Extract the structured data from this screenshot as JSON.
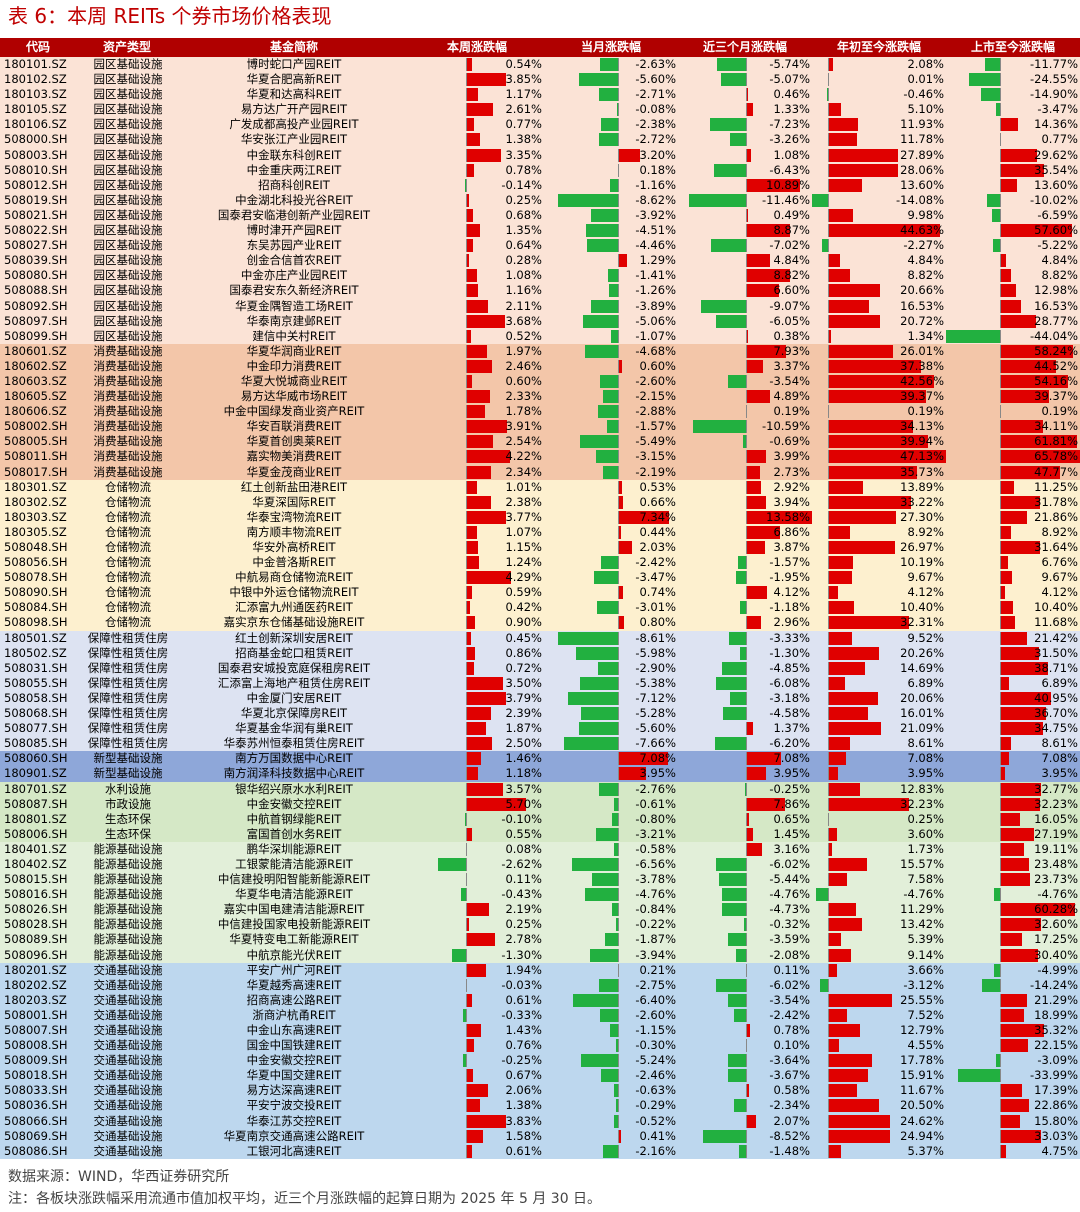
{
  "title": "表 6：本周 REITs 个券市场价格表现",
  "headers": [
    "代码",
    "资产类型",
    "基金简称",
    "本周涨跌幅",
    "当月涨跌幅",
    "近三个月涨跌幅",
    "年初至今涨跌幅",
    "上市至今涨跌幅"
  ],
  "colors": {
    "header_bg": "#b00000",
    "up": "#e00000",
    "down": "#22b040"
  },
  "sector_colors": {
    "园区基础设施": "#fbe3d6",
    "消费基础设施": "#f3c6a9",
    "仓储物流": "#fdf0cf",
    "保障性租赁住房": "#dde3f2",
    "新型基础设施": "#8ea7d9",
    "水利设施": "#d5e8c6",
    "市政设施": "#d5e8c6",
    "生态环保": "#d5e8c6",
    "能源基础设施": "#e2efd9",
    "交通基础设施": "#bdd7ee"
  },
  "rows": [
    {
      "code": "180101.SZ",
      "type": "园区基础设施",
      "name": "博时蛇口产园REIT",
      "week": "0.54%",
      "month": "-2.63%",
      "m3": "-5.74%",
      "ytd": "2.08%",
      "inc": "-11.77%"
    },
    {
      "code": "180102.SZ",
      "type": "园区基础设施",
      "name": "华夏合肥高新REIT",
      "week": "3.85%",
      "month": "-5.60%",
      "m3": "-5.07%",
      "ytd": "0.01%",
      "inc": "-24.55%"
    },
    {
      "code": "180103.SZ",
      "type": "园区基础设施",
      "name": "华夏和达高科REIT",
      "week": "1.17%",
      "month": "-2.71%",
      "m3": "0.46%",
      "ytd": "-0.46%",
      "inc": "-14.90%"
    },
    {
      "code": "180105.SZ",
      "type": "园区基础设施",
      "name": "易方达广开产园REIT",
      "week": "2.61%",
      "month": "-0.08%",
      "m3": "1.33%",
      "ytd": "5.10%",
      "inc": "-3.47%"
    },
    {
      "code": "180106.SZ",
      "type": "园区基础设施",
      "name": "广发成都高投产业园REIT",
      "week": "0.77%",
      "month": "-2.38%",
      "m3": "-7.23%",
      "ytd": "11.93%",
      "inc": "14.36%"
    },
    {
      "code": "508000.SH",
      "type": "园区基础设施",
      "name": "华安张江产业园REIT",
      "week": "1.38%",
      "month": "-2.72%",
      "m3": "-3.26%",
      "ytd": "11.78%",
      "inc": "0.77%"
    },
    {
      "code": "508003.SH",
      "type": "园区基础设施",
      "name": "中金联东科创REIT",
      "week": "3.35%",
      "month": "3.20%",
      "m3": "1.08%",
      "ytd": "27.89%",
      "inc": "29.62%"
    },
    {
      "code": "508010.SH",
      "type": "园区基础设施",
      "name": "中金重庆两江REIT",
      "week": "0.78%",
      "month": "0.18%",
      "m3": "-6.43%",
      "ytd": "28.06%",
      "inc": "35.54%"
    },
    {
      "code": "508012.SH",
      "type": "园区基础设施",
      "name": "招商科创REIT",
      "week": "-0.14%",
      "month": "-1.16%",
      "m3": "10.89%",
      "ytd": "13.60%",
      "inc": "13.60%"
    },
    {
      "code": "508019.SH",
      "type": "园区基础设施",
      "name": "中金湖北科投光谷REIT",
      "week": "0.25%",
      "month": "-8.62%",
      "m3": "-11.46%",
      "ytd": "-14.08%",
      "inc": "-10.02%"
    },
    {
      "code": "508021.SH",
      "type": "园区基础设施",
      "name": "国泰君安临港创新产业园REIT",
      "week": "0.68%",
      "month": "-3.92%",
      "m3": "0.49%",
      "ytd": "9.98%",
      "inc": "-6.59%"
    },
    {
      "code": "508022.SH",
      "type": "园区基础设施",
      "name": "博时津开产园REIT",
      "week": "1.35%",
      "month": "-4.51%",
      "m3": "8.87%",
      "ytd": "44.63%",
      "inc": "57.60%"
    },
    {
      "code": "508027.SH",
      "type": "园区基础设施",
      "name": "东吴苏园产业REIT",
      "week": "0.64%",
      "month": "-4.46%",
      "m3": "-7.02%",
      "ytd": "-2.27%",
      "inc": "-5.22%"
    },
    {
      "code": "508039.SH",
      "type": "园区基础设施",
      "name": "创金合信首农REIT",
      "week": "0.28%",
      "month": "1.29%",
      "m3": "4.84%",
      "ytd": "4.84%",
      "inc": "4.84%"
    },
    {
      "code": "508080.SH",
      "type": "园区基础设施",
      "name": "中金亦庄产业园REIT",
      "week": "1.08%",
      "month": "-1.41%",
      "m3": "8.82%",
      "ytd": "8.82%",
      "inc": "8.82%"
    },
    {
      "code": "508088.SH",
      "type": "园区基础设施",
      "name": "国泰君安东久新经济REIT",
      "week": "1.16%",
      "month": "-1.26%",
      "m3": "6.60%",
      "ytd": "20.66%",
      "inc": "12.98%"
    },
    {
      "code": "508092.SH",
      "type": "园区基础设施",
      "name": "华夏金隅智造工场REIT",
      "week": "2.11%",
      "month": "-3.89%",
      "m3": "-9.07%",
      "ytd": "16.53%",
      "inc": "16.53%"
    },
    {
      "code": "508097.SH",
      "type": "园区基础设施",
      "name": "华泰南京建邺REIT",
      "week": "3.68%",
      "month": "-5.06%",
      "m3": "-6.05%",
      "ytd": "20.72%",
      "inc": "28.77%"
    },
    {
      "code": "508099.SH",
      "type": "园区基础设施",
      "name": "建信中关村REIT",
      "week": "0.52%",
      "month": "-1.07%",
      "m3": "0.38%",
      "ytd": "1.34%",
      "inc": "-44.04%"
    },
    {
      "code": "180601.SZ",
      "type": "消费基础设施",
      "name": "华夏华润商业REIT",
      "week": "1.97%",
      "month": "-4.68%",
      "m3": "7.93%",
      "ytd": "26.01%",
      "inc": "58.24%"
    },
    {
      "code": "180602.SZ",
      "type": "消费基础设施",
      "name": "中金印力消费REIT",
      "week": "2.46%",
      "month": "0.60%",
      "m3": "3.37%",
      "ytd": "37.38%",
      "inc": "44.52%"
    },
    {
      "code": "180603.SZ",
      "type": "消费基础设施",
      "name": "华夏大悦城商业REIT",
      "week": "0.60%",
      "month": "-2.60%",
      "m3": "-3.54%",
      "ytd": "42.56%",
      "inc": "54.16%"
    },
    {
      "code": "180605.SZ",
      "type": "消费基础设施",
      "name": "易方达华威市场REIT",
      "week": "2.33%",
      "month": "-2.15%",
      "m3": "4.89%",
      "ytd": "39.37%",
      "inc": "39.37%"
    },
    {
      "code": "180606.SZ",
      "type": "消费基础设施",
      "name": "中金中国绿发商业资产REIT",
      "week": "1.78%",
      "month": "-2.88%",
      "m3": "0.19%",
      "ytd": "0.19%",
      "inc": "0.19%"
    },
    {
      "code": "508002.SH",
      "type": "消费基础设施",
      "name": "华安百联消费REIT",
      "week": "3.91%",
      "month": "-1.57%",
      "m3": "-10.59%",
      "ytd": "34.13%",
      "inc": "34.11%"
    },
    {
      "code": "508005.SH",
      "type": "消费基础设施",
      "name": "华夏首创奥莱REIT",
      "week": "2.54%",
      "month": "-5.49%",
      "m3": "-0.69%",
      "ytd": "39.94%",
      "inc": "61.81%"
    },
    {
      "code": "508011.SH",
      "type": "消费基础设施",
      "name": "嘉实物美消费REIT",
      "week": "4.22%",
      "month": "-3.15%",
      "m3": "3.99%",
      "ytd": "47.13%",
      "inc": "65.78%"
    },
    {
      "code": "508017.SH",
      "type": "消费基础设施",
      "name": "华夏金茂商业REIT",
      "week": "2.34%",
      "month": "-2.19%",
      "m3": "2.73%",
      "ytd": "35.73%",
      "inc": "47.77%"
    },
    {
      "code": "180301.SZ",
      "type": "仓储物流",
      "name": "红土创新盐田港REIT",
      "week": "1.01%",
      "month": "0.53%",
      "m3": "2.92%",
      "ytd": "13.89%",
      "inc": "11.25%"
    },
    {
      "code": "180302.SZ",
      "type": "仓储物流",
      "name": "华夏深国际REIT",
      "week": "2.38%",
      "month": "0.66%",
      "m3": "3.94%",
      "ytd": "33.22%",
      "inc": "31.78%"
    },
    {
      "code": "180303.SZ",
      "type": "仓储物流",
      "name": "华泰宝湾物流REIT",
      "week": "3.77%",
      "month": "7.34%",
      "m3": "13.58%",
      "ytd": "27.30%",
      "inc": "21.86%"
    },
    {
      "code": "180305.SZ",
      "type": "仓储物流",
      "name": "南方顺丰物流REIT",
      "week": "1.07%",
      "month": "0.44%",
      "m3": "6.86%",
      "ytd": "8.92%",
      "inc": "8.92%"
    },
    {
      "code": "508048.SH",
      "type": "仓储物流",
      "name": "华安外高桥REIT",
      "week": "1.15%",
      "month": "2.03%",
      "m3": "3.87%",
      "ytd": "26.97%",
      "inc": "31.64%"
    },
    {
      "code": "508056.SH",
      "type": "仓储物流",
      "name": "中金普洛斯REIT",
      "week": "1.24%",
      "month": "-2.42%",
      "m3": "-1.57%",
      "ytd": "10.19%",
      "inc": "6.76%"
    },
    {
      "code": "508078.SH",
      "type": "仓储物流",
      "name": "中航易商仓储物流REIT",
      "week": "4.29%",
      "month": "-3.47%",
      "m3": "-1.95%",
      "ytd": "9.67%",
      "inc": "9.67%"
    },
    {
      "code": "508090.SH",
      "type": "仓储物流",
      "name": "中银中外运仓储物流REIT",
      "week": "0.59%",
      "month": "0.74%",
      "m3": "4.12%",
      "ytd": "4.12%",
      "inc": "4.12%"
    },
    {
      "code": "508084.SH",
      "type": "仓储物流",
      "name": "汇添富九州通医药REIT",
      "week": "0.42%",
      "month": "-3.01%",
      "m3": "-1.18%",
      "ytd": "10.40%",
      "inc": "10.40%"
    },
    {
      "code": "508098.SH",
      "type": "仓储物流",
      "name": "嘉实京东仓储基础设施REIT",
      "week": "0.90%",
      "month": "0.80%",
      "m3": "2.96%",
      "ytd": "32.31%",
      "inc": "11.68%"
    },
    {
      "code": "180501.SZ",
      "type": "保障性租赁住房",
      "name": "红土创新深圳安居REIT",
      "week": "0.45%",
      "month": "-8.61%",
      "m3": "-3.33%",
      "ytd": "9.52%",
      "inc": "21.42%"
    },
    {
      "code": "180502.SZ",
      "type": "保障性租赁住房",
      "name": "招商基金蛇口租赁REIT",
      "week": "0.86%",
      "month": "-5.98%",
      "m3": "-1.30%",
      "ytd": "20.26%",
      "inc": "31.50%"
    },
    {
      "code": "508031.SH",
      "type": "保障性租赁住房",
      "name": "国泰君安城投宽庭保租房REIT",
      "week": "0.72%",
      "month": "-2.90%",
      "m3": "-4.85%",
      "ytd": "14.69%",
      "inc": "38.71%"
    },
    {
      "code": "508055.SH",
      "type": "保障性租赁住房",
      "name": "汇添富上海地产租赁住房REIT",
      "week": "3.50%",
      "month": "-5.38%",
      "m3": "-6.08%",
      "ytd": "6.89%",
      "inc": "6.89%"
    },
    {
      "code": "508058.SH",
      "type": "保障性租赁住房",
      "name": "中金厦门安居REIT",
      "week": "3.79%",
      "month": "-7.12%",
      "m3": "-3.18%",
      "ytd": "20.06%",
      "inc": "40.95%"
    },
    {
      "code": "508068.SH",
      "type": "保障性租赁住房",
      "name": "华夏北京保障房REIT",
      "week": "2.39%",
      "month": "-5.28%",
      "m3": "-4.58%",
      "ytd": "16.01%",
      "inc": "36.70%"
    },
    {
      "code": "508077.SH",
      "type": "保障性租赁住房",
      "name": "华夏基金华润有巢REIT",
      "week": "1.87%",
      "month": "-5.60%",
      "m3": "1.37%",
      "ytd": "21.09%",
      "inc": "34.75%"
    },
    {
      "code": "508085.SH",
      "type": "保障性租赁住房",
      "name": "华泰苏州恒泰租赁住房REIT",
      "week": "2.50%",
      "month": "-7.66%",
      "m3": "-6.20%",
      "ytd": "8.61%",
      "inc": "8.61%"
    },
    {
      "code": "508060.SH",
      "type": "新型基础设施",
      "name": "南方万国数据中心REIT",
      "week": "1.46%",
      "month": "7.08%",
      "m3": "7.08%",
      "ytd": "7.08%",
      "inc": "7.08%"
    },
    {
      "code": "180901.SZ",
      "type": "新型基础设施",
      "name": "南方润泽科技数据中心REIT",
      "week": "1.18%",
      "month": "3.95%",
      "m3": "3.95%",
      "ytd": "3.95%",
      "inc": "3.95%"
    },
    {
      "code": "180701.SZ",
      "type": "水利设施",
      "name": "银华绍兴原水水利REIT",
      "week": "3.57%",
      "month": "-2.76%",
      "m3": "-0.25%",
      "ytd": "12.83%",
      "inc": "32.77%"
    },
    {
      "code": "508087.SH",
      "type": "市政设施",
      "name": "中金安徽交控REIT",
      "week": "5.70%",
      "month": "-0.61%",
      "m3": "7.86%",
      "ytd": "32.23%",
      "inc": "32.23%"
    },
    {
      "code": "180801.SZ",
      "type": "生态环保",
      "name": "中航首钢绿能REIT",
      "week": "-0.10%",
      "month": "-0.80%",
      "m3": "0.65%",
      "ytd": "0.25%",
      "inc": "16.05%"
    },
    {
      "code": "508006.SH",
      "type": "生态环保",
      "name": "富国首创水务REIT",
      "week": "0.55%",
      "month": "-3.21%",
      "m3": "1.45%",
      "ytd": "3.60%",
      "inc": "27.19%"
    },
    {
      "code": "180401.SZ",
      "type": "能源基础设施",
      "name": "鹏华深圳能源REIT",
      "week": "0.08%",
      "month": "-0.58%",
      "m3": "3.16%",
      "ytd": "1.73%",
      "inc": "19.11%"
    },
    {
      "code": "180402.SZ",
      "type": "能源基础设施",
      "name": "工银蒙能清洁能源REIT",
      "week": "-2.62%",
      "month": "-6.56%",
      "m3": "-6.02%",
      "ytd": "15.57%",
      "inc": "23.48%"
    },
    {
      "code": "508015.SH",
      "type": "能源基础设施",
      "name": "中信建投明阳智能新能源REIT",
      "week": "0.11%",
      "month": "-3.78%",
      "m3": "-5.44%",
      "ytd": "7.58%",
      "inc": "23.73%"
    },
    {
      "code": "508016.SH",
      "type": "能源基础设施",
      "name": "华夏华电清洁能源REIT",
      "week": "-0.43%",
      "month": "-4.76%",
      "m3": "-4.76%",
      "ytd": "-4.76%",
      "inc": "-4.76%"
    },
    {
      "code": "508026.SH",
      "type": "能源基础设施",
      "name": "嘉实中国电建清洁能源REIT",
      "week": "2.19%",
      "month": "-0.84%",
      "m3": "-4.73%",
      "ytd": "11.29%",
      "inc": "60.28%"
    },
    {
      "code": "508028.SH",
      "type": "能源基础设施",
      "name": "中信建投国家电投新能源REIT",
      "week": "0.25%",
      "month": "-0.22%",
      "m3": "-0.32%",
      "ytd": "13.42%",
      "inc": "32.60%"
    },
    {
      "code": "508089.SH",
      "type": "能源基础设施",
      "name": "华夏特变电工新能源REIT",
      "week": "2.78%",
      "month": "-1.87%",
      "m3": "-3.59%",
      "ytd": "5.39%",
      "inc": "17.25%"
    },
    {
      "code": "508096.SH",
      "type": "能源基础设施",
      "name": "中航京能光伏REIT",
      "week": "-1.30%",
      "month": "-3.94%",
      "m3": "-2.08%",
      "ytd": "9.14%",
      "inc": "30.40%"
    },
    {
      "code": "180201.SZ",
      "type": "交通基础设施",
      "name": "平安广州广河REIT",
      "week": "1.94%",
      "month": "0.21%",
      "m3": "0.11%",
      "ytd": "3.66%",
      "inc": "-4.99%"
    },
    {
      "code": "180202.SZ",
      "type": "交通基础设施",
      "name": "华夏越秀高速REIT",
      "week": "-0.03%",
      "month": "-2.75%",
      "m3": "-6.02%",
      "ytd": "-3.12%",
      "inc": "-14.24%"
    },
    {
      "code": "180203.SZ",
      "type": "交通基础设施",
      "name": "招商高速公路REIT",
      "week": "0.61%",
      "month": "-6.40%",
      "m3": "-3.54%",
      "ytd": "25.55%",
      "inc": "21.29%"
    },
    {
      "code": "508001.SH",
      "type": "交通基础设施",
      "name": "浙商沪杭甬REIT",
      "week": "-0.33%",
      "month": "-2.60%",
      "m3": "-2.42%",
      "ytd": "7.52%",
      "inc": "18.99%"
    },
    {
      "code": "508007.SH",
      "type": "交通基础设施",
      "name": "中金山东高速REIT",
      "week": "1.43%",
      "month": "-1.15%",
      "m3": "0.78%",
      "ytd": "12.79%",
      "inc": "35.32%"
    },
    {
      "code": "508008.SH",
      "type": "交通基础设施",
      "name": "国金中国铁建REIT",
      "week": "0.76%",
      "month": "-0.30%",
      "m3": "0.10%",
      "ytd": "4.55%",
      "inc": "22.15%"
    },
    {
      "code": "508009.SH",
      "type": "交通基础设施",
      "name": "中金安徽交控REIT",
      "week": "-0.25%",
      "month": "-5.24%",
      "m3": "-3.64%",
      "ytd": "17.78%",
      "inc": "-3.09%"
    },
    {
      "code": "508018.SH",
      "type": "交通基础设施",
      "name": "华夏中国交建REIT",
      "week": "0.67%",
      "month": "-2.46%",
      "m3": "-3.67%",
      "ytd": "15.91%",
      "inc": "-33.99%"
    },
    {
      "code": "508033.SH",
      "type": "交通基础设施",
      "name": "易方达深高速REIT",
      "week": "2.06%",
      "month": "-0.63%",
      "m3": "0.58%",
      "ytd": "11.67%",
      "inc": "17.39%"
    },
    {
      "code": "508036.SH",
      "type": "交通基础设施",
      "name": "平安宁波交投REIT",
      "week": "1.38%",
      "month": "-0.29%",
      "m3": "-2.34%",
      "ytd": "20.50%",
      "inc": "22.86%"
    },
    {
      "code": "508066.SH",
      "type": "交通基础设施",
      "name": "华泰江苏交控REIT",
      "week": "3.83%",
      "month": "-0.52%",
      "m3": "2.07%",
      "ytd": "24.62%",
      "inc": "15.80%"
    },
    {
      "code": "508069.SH",
      "type": "交通基础设施",
      "name": "华夏南京交通高速公路REIT",
      "week": "1.58%",
      "month": "0.41%",
      "m3": "-8.52%",
      "ytd": "24.94%",
      "inc": "33.03%"
    },
    {
      "code": "508086.SH",
      "type": "交通基础设施",
      "name": "工银河北高速REIT",
      "week": "0.61%",
      "month": "-2.16%",
      "m3": "-1.48%",
      "ytd": "5.37%",
      "inc": "4.75%"
    }
  ],
  "footer": {
    "source": "数据来源：WIND，华西证券研究所",
    "note": "注：各板块涨跌幅采用流通市值加权平均，近三个月涨跌幅的起算日期为 2025 年 5 月 30 日。"
  }
}
